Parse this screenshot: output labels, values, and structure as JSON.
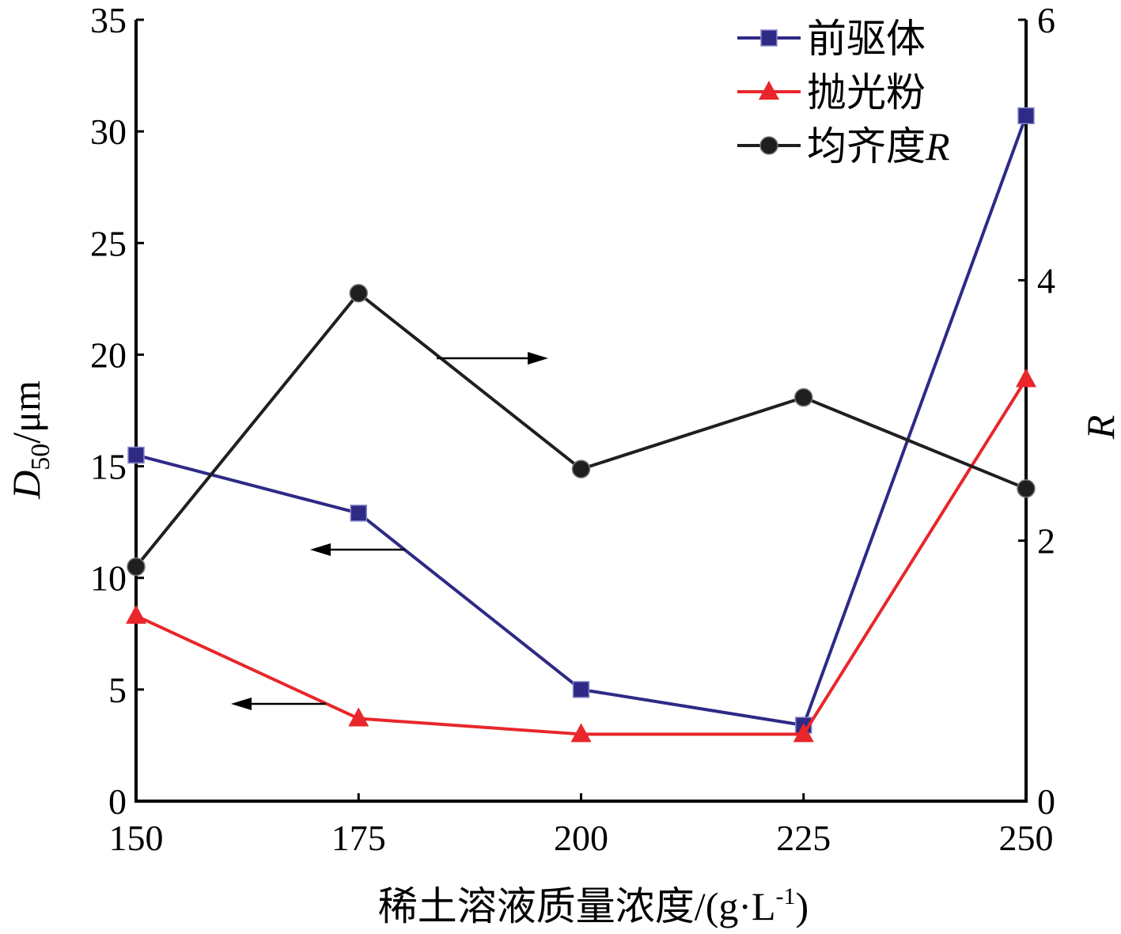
{
  "chart_data": {
    "type": "line",
    "x": [
      150,
      175,
      200,
      225,
      250
    ],
    "x_tick_labels": [
      "150",
      "175",
      "200",
      "225",
      "250"
    ],
    "xlim": [
      150,
      250
    ],
    "xlabel": "稀土溶液质量浓度/(g·L",
    "xlabel_sup": "-1",
    "xlabel_end": ")",
    "ylabel_main": "D",
    "ylabel_sub": "50",
    "ylabel_unit": "/μm",
    "ylim": [
      0,
      35
    ],
    "y_tick_labels": [
      "0",
      "5",
      "10",
      "15",
      "20",
      "25",
      "30",
      "35"
    ],
    "y2label": "R",
    "y2lim": [
      0,
      6
    ],
    "y2_tick_labels": [
      "0",
      "2",
      "4",
      "6"
    ],
    "legend_position": "top-right",
    "series": [
      {
        "name": "前驱体",
        "axis": "left",
        "marker": "square",
        "color": "#2e2a86",
        "values": [
          15.5,
          12.9,
          5.0,
          3.4,
          30.7
        ]
      },
      {
        "name": "抛光粉",
        "axis": "left",
        "marker": "triangle",
        "color": "#e8262b",
        "values": [
          8.3,
          3.7,
          3.0,
          3.0,
          18.9
        ]
      },
      {
        "name": "均齐度",
        "name_italic": "R",
        "axis": "right",
        "marker": "circle",
        "color": "#1f1f1f",
        "values": [
          1.8,
          3.9,
          2.55,
          3.1,
          2.4
        ]
      }
    ]
  }
}
